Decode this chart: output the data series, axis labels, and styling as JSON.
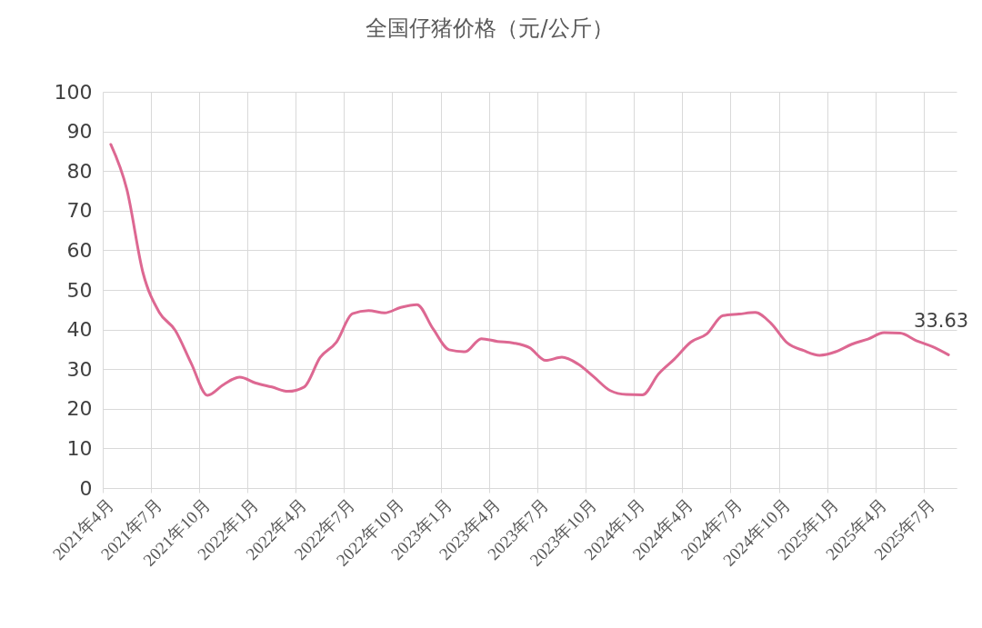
{
  "chart_data": {
    "type": "line",
    "title": "全国仔猪价格（元/公斤）",
    "categories": [
      "2021年4月",
      null,
      null,
      "2021年7月",
      null,
      null,
      "2021年10月",
      null,
      null,
      "2022年1月",
      null,
      null,
      "2022年4月",
      null,
      null,
      "2022年7月",
      null,
      null,
      "2022年10月",
      null,
      null,
      "2023年1月",
      null,
      null,
      "2023年4月",
      null,
      null,
      "2023年7月",
      null,
      null,
      "2023年10月",
      null,
      null,
      "2024年1月",
      null,
      null,
      "2024年4月",
      null,
      null,
      "2024年7月",
      null,
      null,
      "2024年10月",
      null,
      null,
      "2025年1月",
      null,
      null,
      "2025年4月",
      null,
      null,
      "2025年7月",
      null
    ],
    "series": [
      {
        "color": "#dd6892",
        "values": [
          86.7,
          75.3,
          54.3,
          44.4,
          39.8,
          31.4,
          23.4,
          26.1,
          28.0,
          26.5,
          25.5,
          24.4,
          25.5,
          33.0,
          36.8,
          44.0,
          44.8,
          44.2,
          45.6,
          46.3,
          40.2,
          34.9,
          34.4,
          37.7,
          37.0,
          36.6,
          35.4,
          32.2,
          33.0,
          31.3,
          28.0,
          24.6,
          23.6,
          23.5,
          28.8,
          32.6,
          36.8,
          38.9,
          43.5,
          43.9,
          44.3,
          41.5,
          36.6,
          34.7,
          33.5,
          34.4,
          36.3,
          37.6,
          39.2,
          39.1,
          37.2,
          35.7,
          33.63
        ],
        "value_labels": [
          null,
          null,
          null,
          null,
          null,
          null,
          null,
          null,
          null,
          null,
          null,
          null,
          null,
          null,
          null,
          null,
          null,
          null,
          null,
          null,
          null,
          null,
          null,
          null,
          null,
          null,
          null,
          null,
          null,
          null,
          null,
          null,
          null,
          null,
          null,
          null,
          null,
          null,
          null,
          null,
          null,
          null,
          null,
          null,
          null,
          null,
          null,
          null,
          null,
          null,
          null,
          null,
          "33.63"
        ]
      }
    ],
    "ylim": [
      0,
      100
    ],
    "yticks": [
      0,
      10,
      20,
      30,
      40,
      50,
      60,
      70,
      80,
      90,
      100
    ],
    "grid": true
  }
}
